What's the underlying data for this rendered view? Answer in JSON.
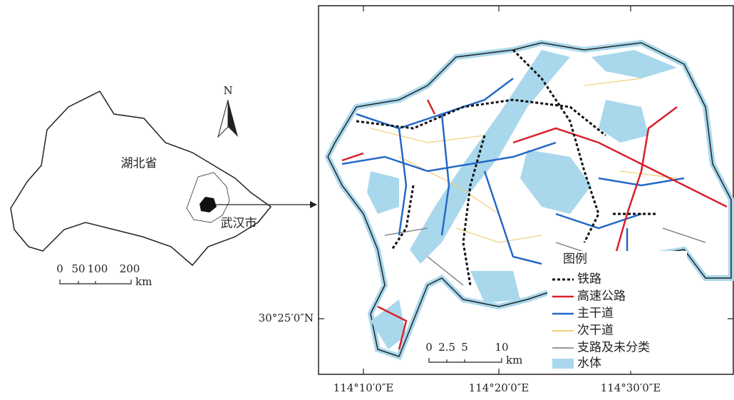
{
  "inset": {
    "province_label": "湖北省",
    "city_label": "武汉市",
    "north": "N",
    "scale": {
      "ticks": [
        0,
        50,
        100,
        200
      ],
      "unit": "km"
    }
  },
  "map": {
    "x_labels": [
      "114°10′0″E",
      "114°20′0″E",
      "114°30′0″E"
    ],
    "y_labels": [
      "30°25′0″N"
    ],
    "scale": {
      "ticks": [
        0,
        2.5,
        5,
        10
      ],
      "unit": "km"
    },
    "legend": {
      "title": "图例",
      "items": [
        "铁路",
        "高速公路",
        "主干道",
        "次干道",
        "支路及未分类",
        "水体"
      ]
    }
  }
}
